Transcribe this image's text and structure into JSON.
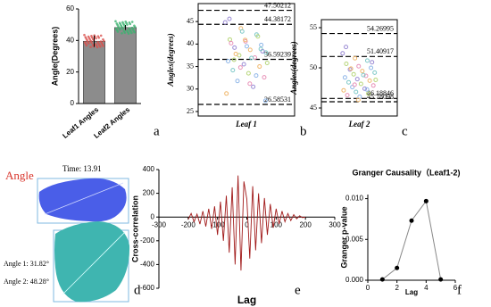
{
  "chart_data": [
    {
      "type": "bar",
      "panel_label": "a",
      "ylabel": "Angle(Degrees)",
      "categories": [
        "Leaf1 Angles",
        "Leaf2 Angles"
      ],
      "values": [
        39.5,
        48.2
      ],
      "errors": [
        3.6,
        1.6
      ],
      "color": "#8c8c8c",
      "point_colors": [
        "#d9534f",
        "#3cb371"
      ],
      "ylim": [
        0,
        60
      ],
      "yticks": [
        0,
        20,
        40,
        60
      ]
    },
    {
      "type": "strip",
      "panel_label": "b",
      "ylabel": "Angles(degrees)",
      "xlabel": "Leaf 1",
      "hlines": [
        47.50212,
        44.38172,
        36.59239,
        26.58531
      ],
      "values": [
        44.8,
        43.5,
        42.1,
        41.0,
        40.6,
        39.8,
        39.2,
        38.7,
        38.1,
        37.5,
        37.0,
        36.2,
        35.5,
        35.0,
        34.2,
        33.5,
        32.6,
        31.8,
        30.5,
        29.0,
        42.8,
        41.7,
        40.2,
        39.5,
        38.4,
        37.8,
        36.9,
        35.8,
        34.8,
        33.0,
        45.6,
        40.9,
        38.9,
        36.5,
        31.2,
        27.4
      ],
      "colors": [
        "#9b8bd4",
        "#f0b86e",
        "#7ec8c8",
        "#b7d67a",
        "#e892b8",
        "#8fb6e8"
      ],
      "ylim": [
        24,
        49
      ],
      "yticks": [
        25,
        30,
        35,
        40,
        45
      ]
    },
    {
      "type": "strip",
      "panel_label": "c",
      "ylabel": "Angles(degrees)",
      "xlabel": "Leaf 2",
      "hlines": [
        54.26995,
        51.40917,
        46.18846,
        45.78098
      ],
      "values": [
        51.8,
        51.2,
        50.9,
        50.5,
        50.2,
        50.0,
        49.8,
        49.6,
        49.4,
        49.2,
        49.0,
        48.8,
        48.6,
        48.4,
        48.2,
        48.0,
        47.8,
        47.6,
        47.4,
        47.2,
        47.0,
        46.8,
        46.6,
        46.4,
        50.7,
        49.9,
        49.1,
        48.5,
        47.9,
        47.3,
        52.6,
        46.0
      ],
      "colors": [
        "#9b8bd4",
        "#f0b86e",
        "#7ec8c8",
        "#b7d67a",
        "#e892b8",
        "#8fb6e8"
      ],
      "ylim": [
        44,
        56
      ],
      "yticks": [
        45,
        50,
        55
      ]
    },
    {
      "type": "line",
      "panel_label": "e",
      "xlabel": "Lag",
      "ylabel": "Cross-correlation",
      "color": "#a11a1a",
      "x": [
        -200,
        -190,
        -180,
        -170,
        -160,
        -150,
        -140,
        -130,
        -120,
        -110,
        -100,
        -90,
        -80,
        -70,
        -60,
        -50,
        -40,
        -30,
        -20,
        -10,
        0,
        10,
        20,
        30,
        40,
        50,
        60,
        70,
        80,
        90,
        100,
        110,
        120,
        130,
        140,
        150,
        160,
        170,
        180,
        190,
        200
      ],
      "values": [
        -20,
        30,
        -40,
        25,
        -60,
        50,
        -80,
        70,
        -100,
        90,
        -150,
        130,
        -200,
        180,
        -300,
        250,
        -400,
        350,
        -450,
        300,
        150,
        -350,
        260,
        -280,
        200,
        -220,
        160,
        -150,
        110,
        -90,
        70,
        -60,
        50,
        -40,
        30,
        -30,
        20,
        -15,
        10,
        -5,
        0
      ],
      "xlim": [
        -300,
        300
      ],
      "xticks": [
        -300,
        -200,
        -100,
        0,
        100,
        200,
        300
      ],
      "ylim": [
        -600,
        400
      ],
      "yticks": [
        -600,
        -400,
        -200,
        0,
        200,
        400
      ]
    },
    {
      "type": "line",
      "panel_label": "f",
      "title": "Granger Causality（Leaf1-2)",
      "xlabel": "Lag",
      "ylabel": "Granger p-value",
      "color": "#888888",
      "markers": true,
      "x": [
        1,
        2,
        3,
        4,
        5
      ],
      "values": [
        0.0001,
        0.0015,
        0.0073,
        0.0097,
        0.0001
      ],
      "xlim": [
        0,
        6
      ],
      "xticks": [
        0,
        2,
        4,
        6
      ],
      "ylim": [
        0,
        0.0105
      ],
      "yticks": [
        {
          "value": 0,
          "label": "0.000"
        },
        {
          "value": 0.005,
          "label": "0.005"
        },
        {
          "value": 0.01,
          "label": "0.010"
        }
      ]
    }
  ],
  "image_panel": {
    "title": "Angle",
    "time": "Time: 13.91",
    "angle1": "Angle 1: 31.82°",
    "angle2": "Angle 2: 48.28°",
    "panel_label": "d"
  }
}
